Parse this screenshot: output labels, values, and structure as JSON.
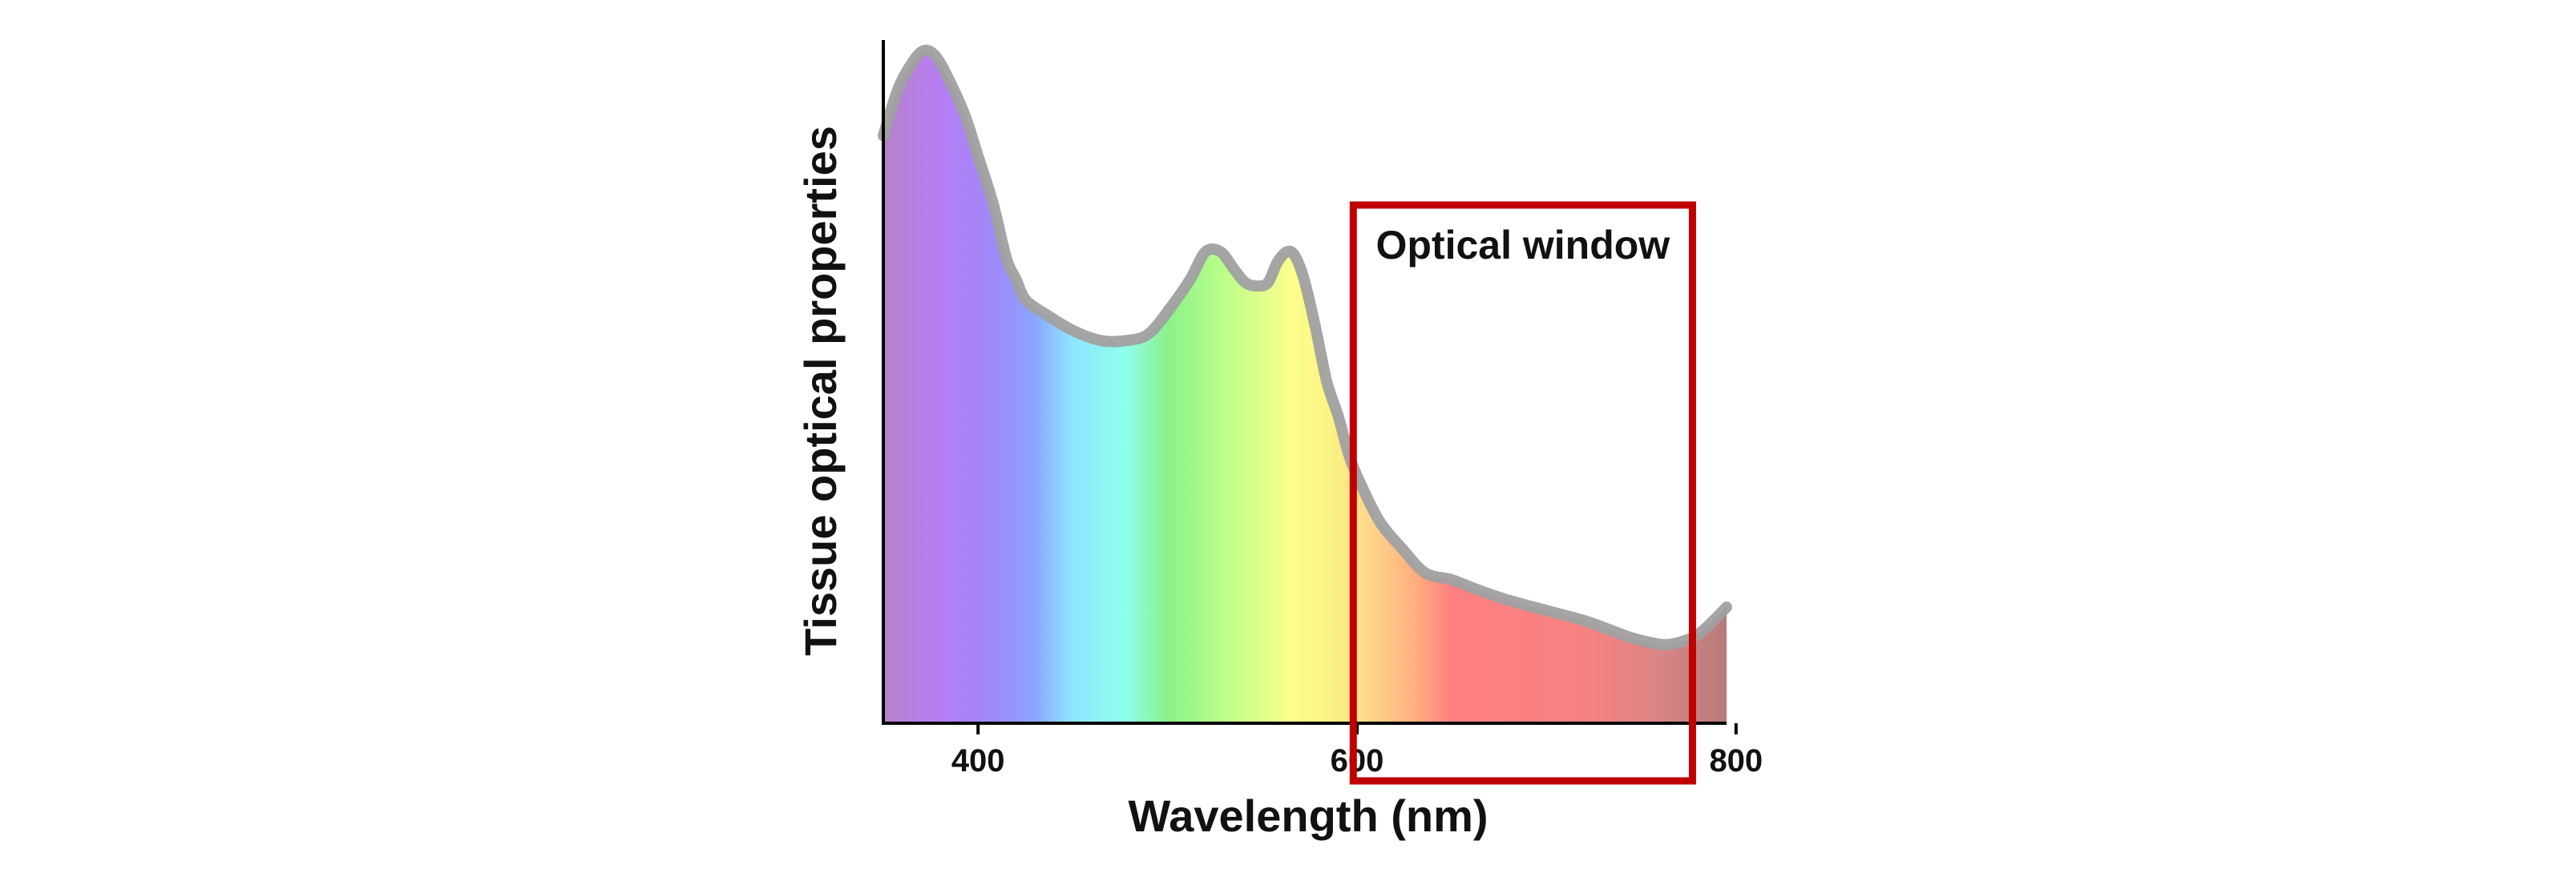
{
  "chart_data": {
    "type": "area",
    "xlabel": "Wavelength (nm)",
    "ylabel": "Tissue optical properties",
    "xlim": [
      350,
      795
    ],
    "ylim": [
      0,
      100
    ],
    "x_ticks": [
      400,
      600,
      800
    ],
    "x_tick_labels": [
      "400",
      "600",
      "800"
    ],
    "series": [
      {
        "x": [
          350,
          358,
          366,
          372,
          378,
          385,
          393,
          400,
          408,
          415,
          420,
          425,
          435,
          450,
          465,
          478,
          490,
          502,
          512,
          520,
          528,
          535,
          541,
          547,
          553,
          558,
          563,
          567,
          572,
          578,
          584,
          590,
          596,
          602,
          612,
          624,
          636,
          650,
          664,
          680,
          700,
          720,
          735,
          745,
          755,
          763,
          772,
          780,
          788,
          795
        ],
        "y": [
          86,
          93,
          97,
          98.5,
          97.5,
          94,
          89,
          83,
          76,
          68,
          65,
          62,
          60,
          57.5,
          56,
          56,
          57,
          61,
          65,
          69,
          69,
          66.5,
          64.5,
          64,
          64.5,
          67.5,
          69,
          68.5,
          65,
          58,
          50,
          45,
          39,
          35,
          29.5,
          25.5,
          22,
          21,
          19.5,
          18,
          16.5,
          15,
          13.5,
          12.5,
          11.8,
          11.5,
          12,
          13,
          15,
          17
        ]
      }
    ],
    "spectrum_gradient": [
      {
        "wavelength": 350,
        "color": "#b582c8"
      },
      {
        "wavelength": 380,
        "color": "#b77ef5"
      },
      {
        "wavelength": 410,
        "color": "#9d8af8"
      },
      {
        "wavelength": 430,
        "color": "#8aa6ff"
      },
      {
        "wavelength": 450,
        "color": "#8ee6ff"
      },
      {
        "wavelength": 478,
        "color": "#8fffec"
      },
      {
        "wavelength": 500,
        "color": "#8bf08b"
      },
      {
        "wavelength": 530,
        "color": "#bbff8a"
      },
      {
        "wavelength": 565,
        "color": "#fcff8c"
      },
      {
        "wavelength": 585,
        "color": "#fbf484"
      },
      {
        "wavelength": 605,
        "color": "#fdd98b"
      },
      {
        "wavelength": 630,
        "color": "#ffb07f"
      },
      {
        "wavelength": 650,
        "color": "#ff8080"
      },
      {
        "wavelength": 720,
        "color": "#f88282"
      },
      {
        "wavelength": 760,
        "color": "#d88585"
      },
      {
        "wavelength": 795,
        "color": "#b57b7b"
      }
    ],
    "curve_color": "#a0a0a0",
    "annotations": [
      {
        "type": "rectangle",
        "label": "Optical window",
        "x_range": [
          598,
          777
        ],
        "color": "#c00000"
      }
    ]
  }
}
